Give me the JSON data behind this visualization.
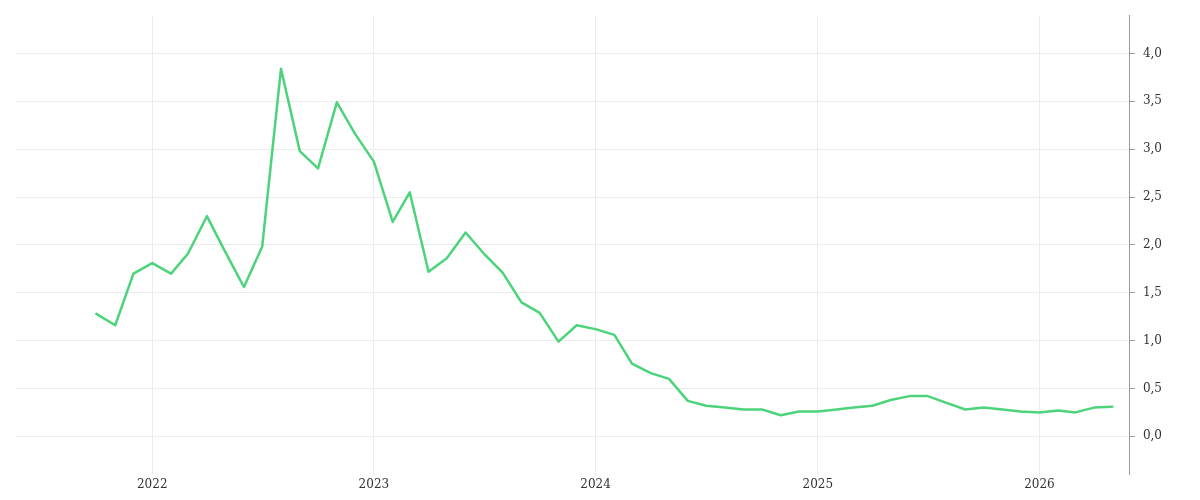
{
  "chart_data": {
    "type": "line",
    "x": [
      "2021-10",
      "2021-11",
      "2021-12",
      "2022-01",
      "2022-02",
      "2022-03",
      "2022-04",
      "2022-05",
      "2022-06",
      "2022-07",
      "2022-08",
      "2022-09",
      "2022-10",
      "2022-11",
      "2022-12",
      "2023-01",
      "2023-02",
      "2023-03",
      "2023-04",
      "2023-05",
      "2023-06",
      "2023-07",
      "2023-08",
      "2023-09",
      "2023-10",
      "2023-11",
      "2023-12",
      "2024-01",
      "2024-02",
      "2024-03",
      "2024-04",
      "2024-05",
      "2024-06",
      "2024-07",
      "2024-08",
      "2024-09",
      "2024-10",
      "2024-11",
      "2024-12",
      "2025-01",
      "2025-02",
      "2025-03",
      "2025-04",
      "2025-05",
      "2025-06",
      "2025-07",
      "2025-08",
      "2025-09",
      "2025-10",
      "2025-11",
      "2025-12",
      "2026-01",
      "2026-02",
      "2026-03",
      "2026-04",
      "2026-05"
    ],
    "series": [
      {
        "color": "#4cd37b",
        "values": [
          1.28,
          1.16,
          1.7,
          1.81,
          1.7,
          1.91,
          2.3,
          1.93,
          1.56,
          1.98,
          3.84,
          2.98,
          2.8,
          3.49,
          3.16,
          2.87,
          2.24,
          2.55,
          1.72,
          1.86,
          2.13,
          1.91,
          1.71,
          1.4,
          1.29,
          0.99,
          1.16,
          1.12,
          1.06,
          0.76,
          0.66,
          0.6,
          0.37,
          0.32,
          0.3,
          0.28,
          0.28,
          0.22,
          0.26,
          0.26,
          0.28,
          0.3,
          0.32,
          0.38,
          0.42,
          0.42,
          0.35,
          0.28,
          0.3,
          0.28,
          0.26,
          0.25,
          0.27,
          0.25,
          0.3,
          0.31
        ]
      }
    ],
    "xlim": [
      "2021-05-20",
      "2026-05-30"
    ],
    "xticks": [
      "2022",
      "2023",
      "2024",
      "2025",
      "2026"
    ],
    "ylim": [
      -0.4,
      4.4
    ],
    "yticks": [
      {
        "value": 0,
        "label": "0,0"
      },
      {
        "value": 0.5,
        "label": "0,5"
      },
      {
        "value": 1,
        "label": "1,0"
      },
      {
        "value": 1.5,
        "label": "1,5"
      },
      {
        "value": 2,
        "label": "2,0"
      },
      {
        "value": 2.5,
        "label": "2,5"
      },
      {
        "value": 3,
        "label": "3,0"
      },
      {
        "value": 3.5,
        "label": "3,5"
      },
      {
        "value": 4,
        "label": "4,0"
      }
    ],
    "grid": true,
    "legend": false,
    "marker": "none",
    "line_style": "solid"
  }
}
